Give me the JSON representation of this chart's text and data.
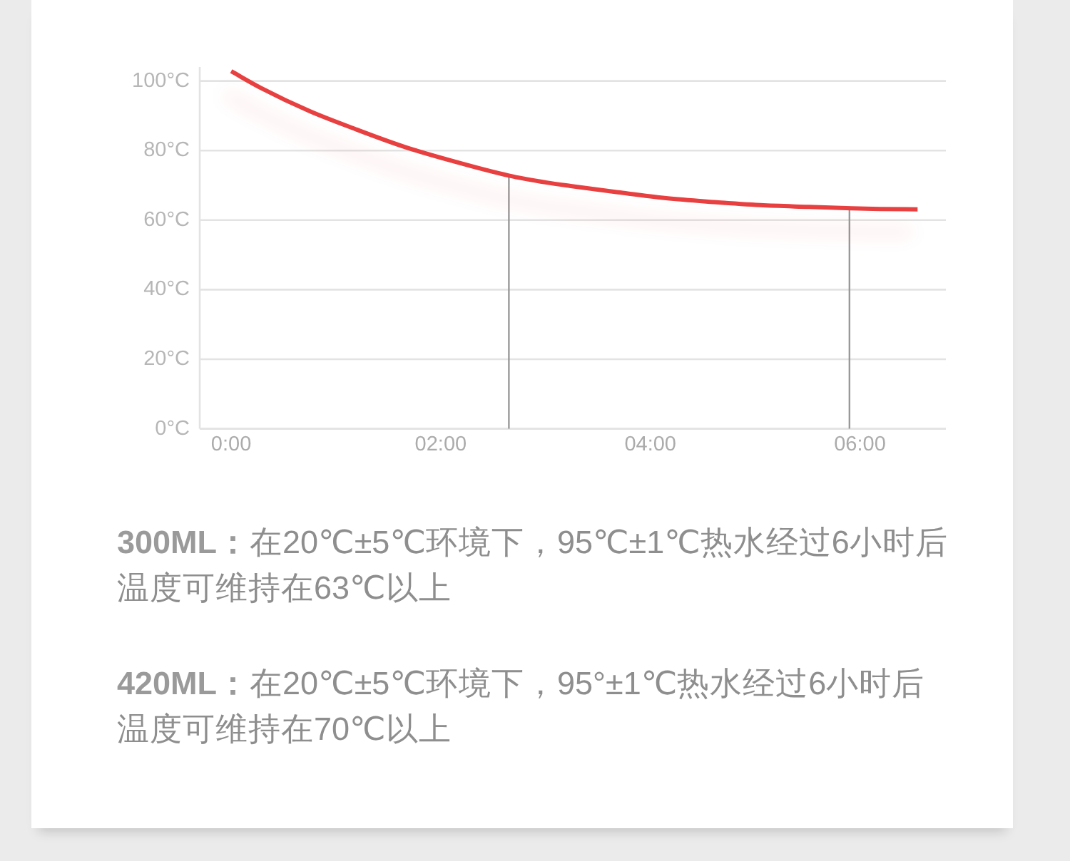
{
  "chart_data": {
    "type": "line",
    "x": [
      0,
      0.29,
      0.75,
      1.2,
      1.65,
      2.1,
      2.65,
      3.01,
      3.24,
      3.69,
      4.15,
      4.6,
      5.05,
      5.51,
      5.92,
      6.19,
      6.55
    ],
    "series": [
      {
        "color": "#e8403f",
        "values": [
          102.8,
          97.9,
          91.3,
          86.0,
          81.1,
          77.1,
          72.8,
          70.8,
          69.8,
          68.0,
          66.3,
          65.2,
          64.3,
          63.8,
          63.4,
          63.2,
          63.1
        ]
      }
    ],
    "xlim": [
      -0.3,
      6.82
    ],
    "xticks": [
      {
        "value": 0,
        "label": "0:00"
      },
      {
        "value": 2,
        "label": "02:00"
      },
      {
        "value": 4,
        "label": "04:00"
      },
      {
        "value": 6,
        "label": "06:00"
      }
    ],
    "ylim": [
      0,
      104
    ],
    "yticks": [
      {
        "value": 0,
        "label": "0°C"
      },
      {
        "value": 20,
        "label": "20°C"
      },
      {
        "value": 40,
        "label": "40°C"
      },
      {
        "value": 60,
        "label": "60°C"
      },
      {
        "value": 80,
        "label": "80°C"
      },
      {
        "value": 100,
        "label": "100°C"
      }
    ],
    "grid": "y",
    "ref_lines": [
      {
        "axis": "x",
        "value": 2.65,
        "color": "#999999"
      },
      {
        "axis": "x",
        "value": 5.9,
        "color": "#999999"
      }
    ],
    "annotations": [
      "300ML：在20℃±5℃环境下，95℃±1℃热水经过6小时后温度可维持在63℃以上",
      "420ML：在20℃±5℃环境下，95°±1℃热水经过6小时后温度可维持在70℃以上"
    ]
  }
}
